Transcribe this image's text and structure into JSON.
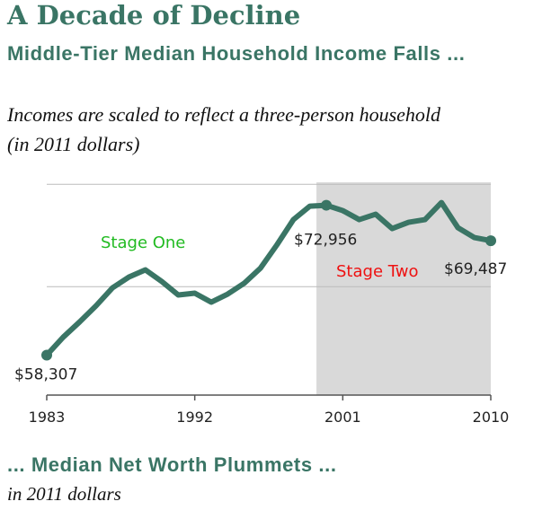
{
  "chart_data": {
    "type": "line",
    "title": "A Decade of Decline",
    "subtitle": "Middle-Tier Median Household Income Falls ...",
    "description": "Incomes are scaled to reflect a three-person household (in 2011 dollars)",
    "x": [
      1983,
      1984,
      1985,
      1986,
      1987,
      1988,
      1989,
      1990,
      1991,
      1992,
      1993,
      1994,
      1995,
      1996,
      1997,
      1998,
      1999,
      2000,
      2001,
      2002,
      2003,
      2004,
      2005,
      2006,
      2007,
      2008,
      2009,
      2010
    ],
    "series": [
      {
        "name": "Median household income",
        "color": "#3a7565",
        "values": [
          58307,
          60061,
          61552,
          63131,
          64886,
          65938,
          66640,
          65500,
          64184,
          64360,
          63482,
          64272,
          65325,
          66816,
          69096,
          71552,
          72868,
          72956,
          72430,
          71553,
          72079,
          70676,
          71290,
          71553,
          73219,
          70763,
          69798,
          69487
        ],
        "value_labels": [
          "$58,307",
          null,
          null,
          null,
          null,
          null,
          null,
          null,
          null,
          null,
          null,
          null,
          null,
          null,
          null,
          null,
          null,
          "$72,956",
          null,
          null,
          null,
          null,
          null,
          null,
          null,
          null,
          null,
          "$69,487"
        ]
      }
    ],
    "xlim": [
      1983,
      2010
    ],
    "xticks": [
      1983,
      1992,
      2001,
      2010
    ],
    "ylim": [
      54400,
      75200
    ],
    "yticks": [
      65000,
      75000
    ],
    "grid": true,
    "shaded_range": [
      1999.4,
      2010
    ],
    "annotations": [
      {
        "text": "Stage One",
        "color": "#22bb22"
      },
      {
        "text": "Stage Two",
        "color": "#ee1111"
      }
    ],
    "footer_title": "... Median Net Worth Plummets ...",
    "footer_subtitle": "in 2011 dollars"
  }
}
